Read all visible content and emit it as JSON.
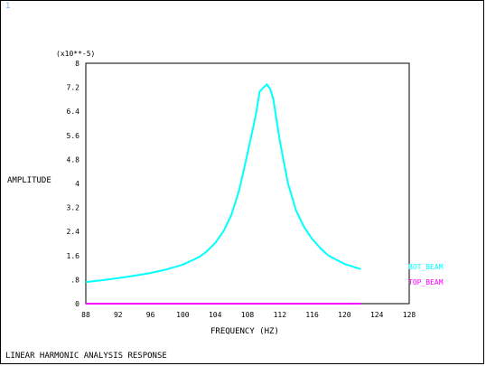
{
  "window": {
    "number": "1"
  },
  "footer": {
    "text": "LINEAR HARMONIC ANALYSIS RESPONSE"
  },
  "chart_data": {
    "type": "line",
    "title": "",
    "xlabel": "FREQUENCY (HZ)",
    "ylabel": "AMPLITUDE",
    "y_scale_note": "(x10**-5)",
    "xlim": [
      88,
      128
    ],
    "ylim": [
      0,
      8
    ],
    "x_ticks": [
      "88",
      "92",
      "96",
      "100",
      "104",
      "108",
      "112",
      "116",
      "120",
      "124",
      "128"
    ],
    "y_ticks": [
      "0",
      ".8",
      "1.6",
      "2.4",
      "3.2",
      "4",
      "4.8",
      "5.6",
      "6.4",
      "7.2",
      "8"
    ],
    "grid": false,
    "legend_position": "right",
    "series": [
      {
        "name": "BOT_BEAM",
        "color": "#00ffff",
        "x": [
          88,
          90,
          92,
          94,
          96,
          98,
          100,
          102,
          103,
          104,
          105,
          106,
          107,
          108,
          109,
          109.5,
          110,
          110.4,
          110.8,
          111.2,
          112,
          113,
          114,
          115,
          116,
          117,
          118,
          120,
          122
        ],
        "y": [
          0.72,
          0.78,
          0.85,
          0.93,
          1.02,
          1.14,
          1.3,
          1.55,
          1.75,
          2.02,
          2.4,
          2.95,
          3.8,
          5.0,
          6.25,
          7.05,
          7.2,
          7.3,
          7.15,
          6.8,
          5.4,
          4.0,
          3.1,
          2.55,
          2.15,
          1.85,
          1.6,
          1.32,
          1.15
        ]
      },
      {
        "name": "TOP_BEAM",
        "color": "#ff00ff",
        "x": [
          88,
          122
        ],
        "y": [
          0.0,
          0.0
        ]
      }
    ]
  }
}
